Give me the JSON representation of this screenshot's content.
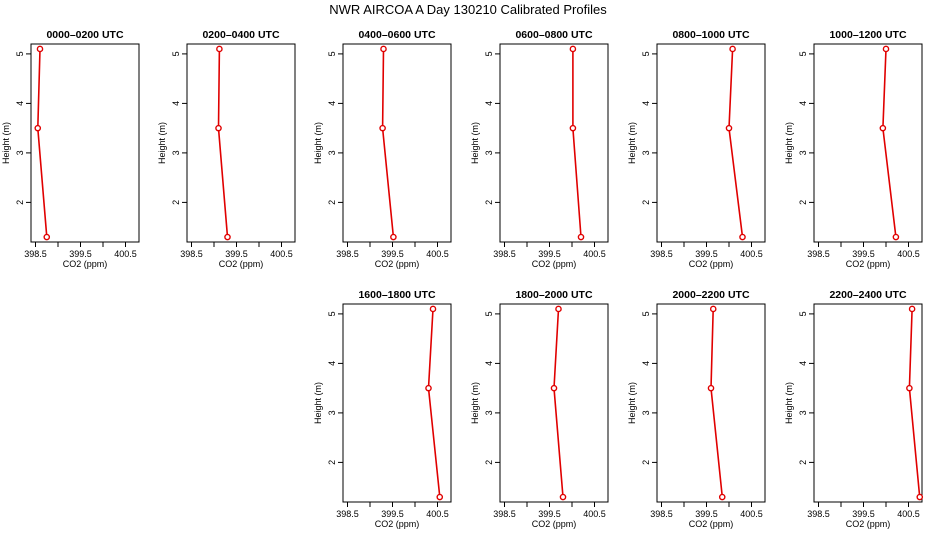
{
  "figure": {
    "title": "NWR AIRCOA A  Day 130210  Calibrated Profiles"
  },
  "colors": {
    "series": "#e00000",
    "axis": "#000000",
    "background": "#ffffff"
  },
  "chart_data": [
    {
      "type": "line",
      "title": "0000–0200 UTC",
      "xlabel": "CO2 (ppm)",
      "ylabel": "Height (m)",
      "xlim": [
        398.4,
        400.8
      ],
      "ylim": [
        1.2,
        5.2
      ],
      "xticks": [
        398.5,
        399,
        399.5,
        400,
        400.5
      ],
      "xtick_labels": [
        "398.5",
        "",
        "399.5",
        "",
        "400.5"
      ],
      "yticks": [
        2,
        3,
        4,
        5
      ],
      "ytick_labels": [
        "2",
        "3",
        "4",
        "5"
      ],
      "x": [
        398.6,
        398.55,
        398.75
      ],
      "y": [
        5.1,
        3.5,
        1.3
      ]
    },
    {
      "type": "line",
      "title": "0200–0400 UTC",
      "xlabel": "CO2 (ppm)",
      "ylabel": "Height (m)",
      "xlim": [
        398.4,
        400.8
      ],
      "ylim": [
        1.2,
        5.2
      ],
      "xticks": [
        398.5,
        399,
        399.5,
        400,
        400.5
      ],
      "xtick_labels": [
        "398.5",
        "",
        "399.5",
        "",
        "400.5"
      ],
      "yticks": [
        2,
        3,
        4,
        5
      ],
      "ytick_labels": [
        "2",
        "3",
        "4",
        "5"
      ],
      "x": [
        399.12,
        399.1,
        399.3
      ],
      "y": [
        5.1,
        3.5,
        1.3
      ]
    },
    {
      "type": "line",
      "title": "0400–0600 UTC",
      "xlabel": "CO2 (ppm)",
      "ylabel": "Height (m)",
      "xlim": [
        398.4,
        400.8
      ],
      "ylim": [
        1.2,
        5.2
      ],
      "xticks": [
        398.5,
        399,
        399.5,
        400,
        400.5
      ],
      "xtick_labels": [
        "398.5",
        "",
        "399.5",
        "",
        "400.5"
      ],
      "yticks": [
        2,
        3,
        4,
        5
      ],
      "ytick_labels": [
        "2",
        "3",
        "4",
        "5"
      ],
      "x": [
        399.3,
        399.28,
        399.52
      ],
      "y": [
        5.1,
        3.5,
        1.3
      ]
    },
    {
      "type": "line",
      "title": "0600–0800 UTC",
      "xlabel": "CO2 (ppm)",
      "ylabel": "Height (m)",
      "xlim": [
        398.4,
        400.8
      ],
      "ylim": [
        1.2,
        5.2
      ],
      "xticks": [
        398.5,
        399,
        399.5,
        400,
        400.5
      ],
      "xtick_labels": [
        "398.5",
        "",
        "399.5",
        "",
        "400.5"
      ],
      "yticks": [
        2,
        3,
        4,
        5
      ],
      "ytick_labels": [
        "2",
        "3",
        "4",
        "5"
      ],
      "x": [
        400.02,
        400.02,
        400.2
      ],
      "y": [
        5.1,
        3.5,
        1.3
      ]
    },
    {
      "type": "line",
      "title": "0800–1000 UTC",
      "xlabel": "CO2 (ppm)",
      "ylabel": "Height (m)",
      "xlim": [
        398.4,
        400.8
      ],
      "ylim": [
        1.2,
        5.2
      ],
      "xticks": [
        398.5,
        399,
        399.5,
        400,
        400.5
      ],
      "xtick_labels": [
        "398.5",
        "",
        "399.5",
        "",
        "400.5"
      ],
      "yticks": [
        2,
        3,
        4,
        5
      ],
      "ytick_labels": [
        "2",
        "3",
        "4",
        "5"
      ],
      "x": [
        400.08,
        400.0,
        400.3
      ],
      "y": [
        5.1,
        3.5,
        1.3
      ]
    },
    {
      "type": "line",
      "title": "1000–1200 UTC",
      "xlabel": "CO2 (ppm)",
      "ylabel": "Height (m)",
      "xlim": [
        398.4,
        400.8
      ],
      "ylim": [
        1.2,
        5.2
      ],
      "xticks": [
        398.5,
        399,
        399.5,
        400,
        400.5
      ],
      "xtick_labels": [
        "398.5",
        "",
        "399.5",
        "",
        "400.5"
      ],
      "yticks": [
        2,
        3,
        4,
        5
      ],
      "ytick_labels": [
        "2",
        "3",
        "4",
        "5"
      ],
      "x": [
        400.0,
        399.93,
        400.22
      ],
      "y": [
        5.1,
        3.5,
        1.3
      ]
    },
    {
      "type": "line",
      "title": "1600–1800 UTC",
      "xlabel": "CO2 (ppm)",
      "ylabel": "Height (m)",
      "xlim": [
        398.4,
        400.8
      ],
      "ylim": [
        1.2,
        5.2
      ],
      "xticks": [
        398.5,
        399,
        399.5,
        400,
        400.5
      ],
      "xtick_labels": [
        "398.5",
        "",
        "399.5",
        "",
        "400.5"
      ],
      "yticks": [
        2,
        3,
        4,
        5
      ],
      "ytick_labels": [
        "2",
        "3",
        "4",
        "5"
      ],
      "x": [
        400.4,
        400.3,
        400.55
      ],
      "y": [
        5.1,
        3.5,
        1.3
      ]
    },
    {
      "type": "line",
      "title": "1800–2000 UTC",
      "xlabel": "CO2 (ppm)",
      "ylabel": "Height (m)",
      "xlim": [
        398.4,
        400.8
      ],
      "ylim": [
        1.2,
        5.2
      ],
      "xticks": [
        398.5,
        399,
        399.5,
        400,
        400.5
      ],
      "xtick_labels": [
        "398.5",
        "",
        "399.5",
        "",
        "400.5"
      ],
      "yticks": [
        2,
        3,
        4,
        5
      ],
      "ytick_labels": [
        "2",
        "3",
        "4",
        "5"
      ],
      "x": [
        399.7,
        399.6,
        399.8
      ],
      "y": [
        5.1,
        3.5,
        1.3
      ]
    },
    {
      "type": "line",
      "title": "2000–2200 UTC",
      "xlabel": "CO2 (ppm)",
      "ylabel": "Height (m)",
      "xlim": [
        398.4,
        400.8
      ],
      "ylim": [
        1.2,
        5.2
      ],
      "xticks": [
        398.5,
        399,
        399.5,
        400,
        400.5
      ],
      "xtick_labels": [
        "398.5",
        "",
        "399.5",
        "",
        "400.5"
      ],
      "yticks": [
        2,
        3,
        4,
        5
      ],
      "ytick_labels": [
        "2",
        "3",
        "4",
        "5"
      ],
      "x": [
        399.65,
        399.6,
        399.85
      ],
      "y": [
        5.1,
        3.5,
        1.3
      ]
    },
    {
      "type": "line",
      "title": "2200–2400 UTC",
      "xlabel": "CO2 (ppm)",
      "ylabel": "Height (m)",
      "xlim": [
        398.4,
        400.8
      ],
      "ylim": [
        1.2,
        5.2
      ],
      "xticks": [
        398.5,
        399,
        399.5,
        400,
        400.5
      ],
      "xtick_labels": [
        "398.5",
        "",
        "399.5",
        "",
        "400.5"
      ],
      "yticks": [
        2,
        3,
        4,
        5
      ],
      "ytick_labels": [
        "2",
        "3",
        "4",
        "5"
      ],
      "x": [
        400.58,
        400.52,
        400.75
      ],
      "y": [
        5.1,
        3.5,
        1.3
      ]
    }
  ]
}
